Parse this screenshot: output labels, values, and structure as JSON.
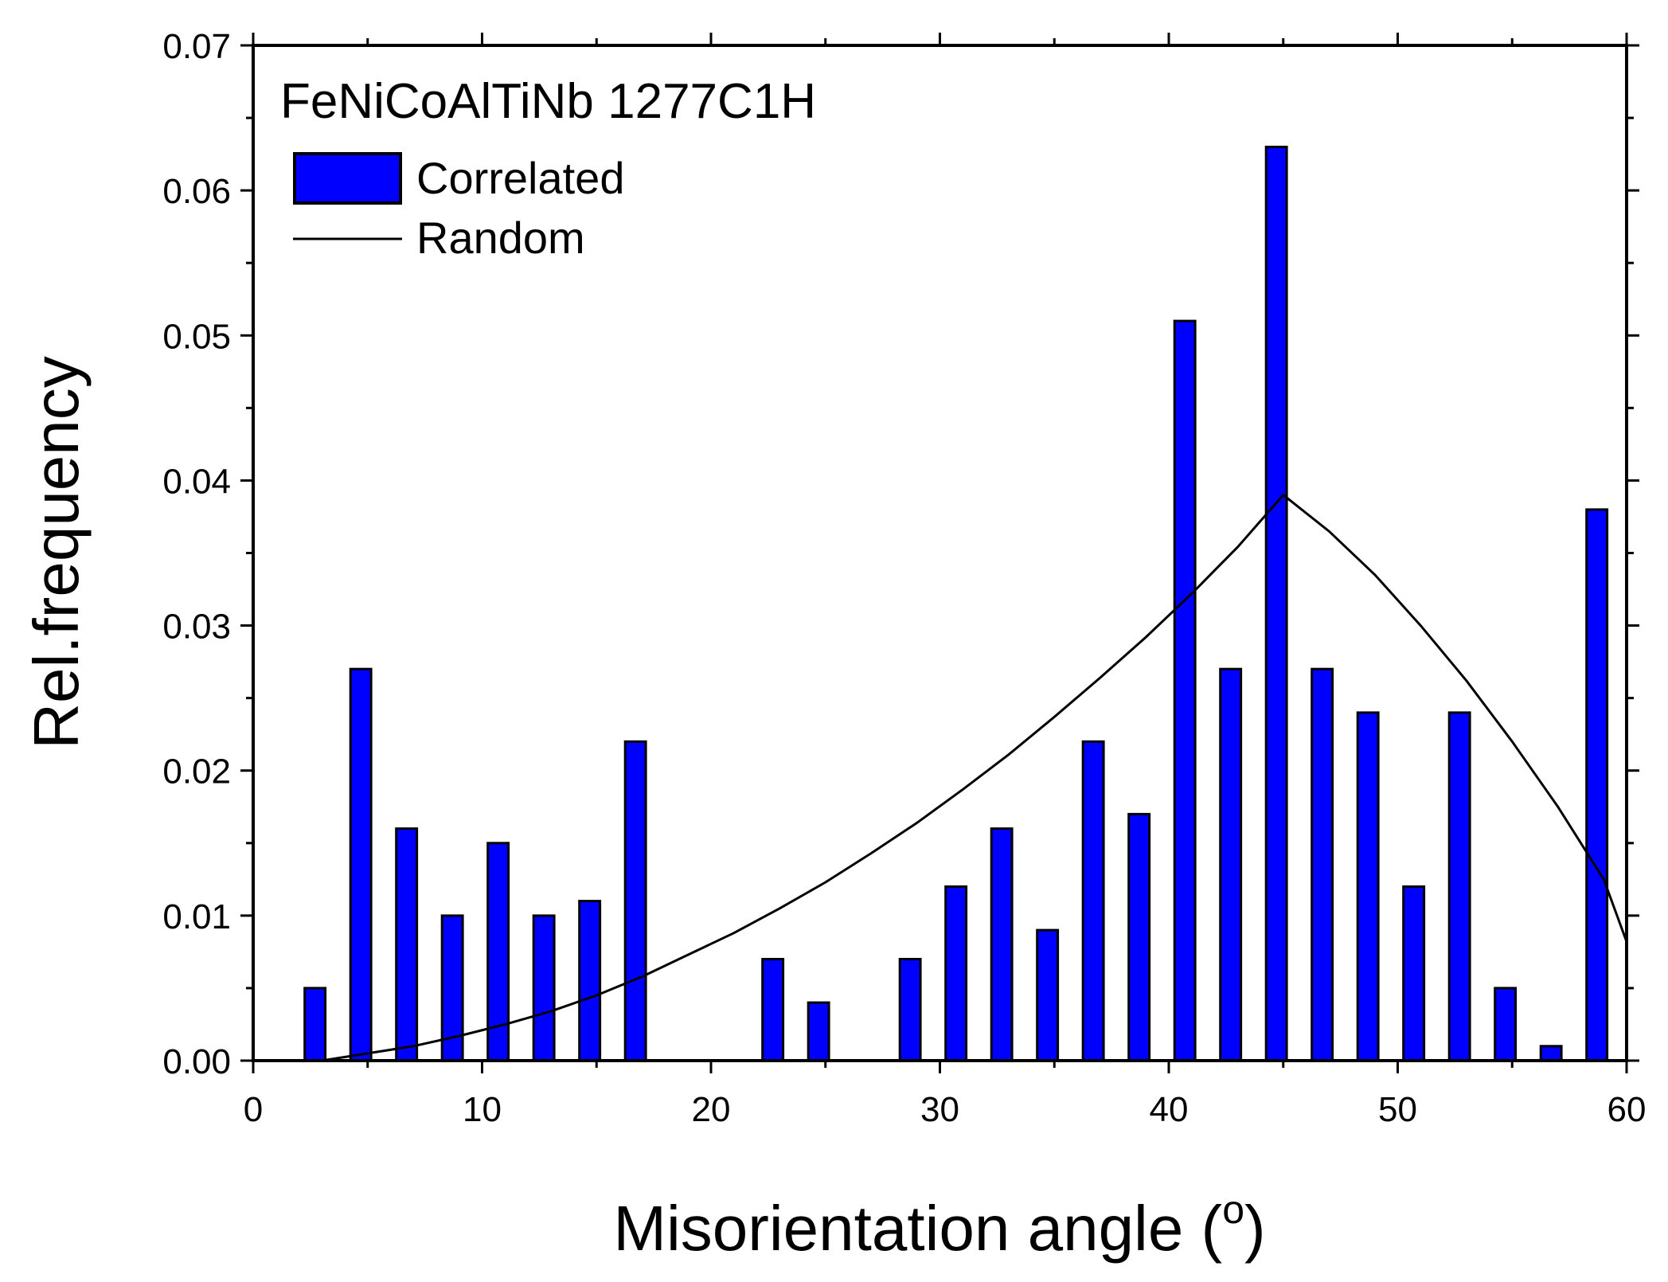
{
  "chart_data": {
    "type": "bar",
    "annotation": "FeNiCoAlTiNb 1277C1H",
    "xlabel": "Misorientation angle (",
    "xlabel_degree": "o",
    "xlabel_close": ")",
    "ylabel": "Rel.frequency",
    "xlim": [
      0,
      60
    ],
    "ylim": [
      0,
      0.07
    ],
    "x_ticks": [
      0,
      10,
      20,
      30,
      40,
      50,
      60
    ],
    "x_tick_labels": [
      "0",
      "10",
      "20",
      "30",
      "40",
      "50",
      "60"
    ],
    "y_ticks": [
      0,
      0.01,
      0.02,
      0.03,
      0.04,
      0.05,
      0.06,
      0.07
    ],
    "y_tick_labels": [
      "0.00",
      "0.01",
      "0.02",
      "0.03",
      "0.04",
      "0.05",
      "0.06",
      "0.07"
    ],
    "legend_position": "top-left",
    "colors": {
      "bar": "#0000ff",
      "line": "#000000",
      "axis": "#000000"
    },
    "series": [
      {
        "name": "Correlated",
        "kind": "bar",
        "bar_width": 0.9,
        "x": [
          2.7,
          4.7,
          6.7,
          8.7,
          10.7,
          12.7,
          14.7,
          16.7,
          22.7,
          24.7,
          28.7,
          30.7,
          32.7,
          34.7,
          36.7,
          38.7,
          40.7,
          42.7,
          44.7,
          46.7,
          48.7,
          50.7,
          52.7,
          54.7,
          56.7,
          58.7
        ],
        "values": [
          0.005,
          0.027,
          0.016,
          0.01,
          0.015,
          0.01,
          0.011,
          0.022,
          0.007,
          0.004,
          0.007,
          0.012,
          0.016,
          0.009,
          0.022,
          0.017,
          0.051,
          0.027,
          0.063,
          0.027,
          0.024,
          0.012,
          0.024,
          0.005,
          0.001,
          0.038
        ]
      },
      {
        "name": "Random",
        "kind": "line",
        "x": [
          3,
          5,
          7,
          9,
          11,
          13,
          15,
          17,
          19,
          21,
          23,
          25,
          27,
          29,
          31,
          33,
          35,
          37,
          39,
          41,
          43,
          45,
          47,
          49,
          51,
          53,
          55,
          57,
          59,
          60
        ],
        "values": [
          0.0,
          0.0005,
          0.001,
          0.0017,
          0.0025,
          0.0034,
          0.0045,
          0.0058,
          0.0073,
          0.0088,
          0.0105,
          0.0123,
          0.0143,
          0.0164,
          0.0187,
          0.0211,
          0.0237,
          0.0264,
          0.0292,
          0.0322,
          0.0354,
          0.039,
          0.0365,
          0.0335,
          0.03,
          0.0262,
          0.022,
          0.0175,
          0.0125,
          0.0082
        ]
      }
    ]
  }
}
